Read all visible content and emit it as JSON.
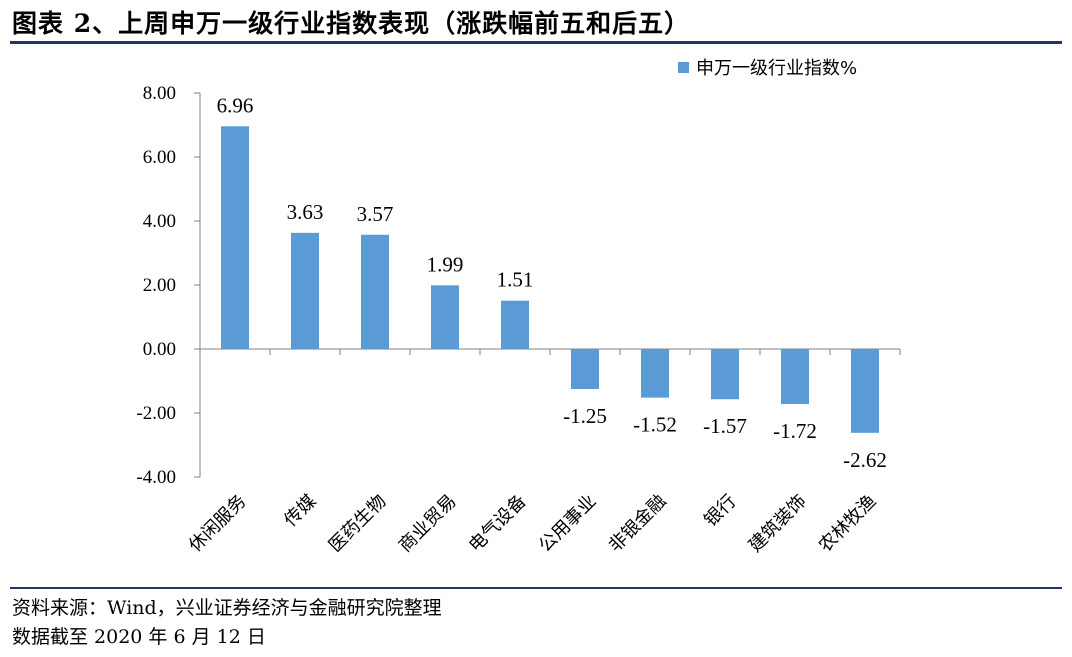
{
  "title": "图表 2、上周申万一级行业指数表现（涨跌幅前五和后五）",
  "footer": {
    "source": "资料来源：Wind，兴业证券经济与金融研究院整理",
    "date_note": "数据截至 2020 年 6 月 12 日"
  },
  "colors": {
    "bar": "#5b9bd5",
    "rule": "#1f3864",
    "axis": "#808080"
  },
  "chart_data": {
    "type": "bar",
    "categories": [
      "休闲服务",
      "传媒",
      "医药生物",
      "商业贸易",
      "电气设备",
      "公用事业",
      "非银金融",
      "银行",
      "建筑装饰",
      "农林牧渔"
    ],
    "series": [
      {
        "name": "申万一级行业指数%",
        "values": [
          6.96,
          3.63,
          3.57,
          1.99,
          1.51,
          -1.25,
          -1.52,
          -1.57,
          -1.72,
          -2.62
        ]
      }
    ],
    "data_labels": [
      "6.96",
      "3.63",
      "3.57",
      "1.99",
      "1.51",
      "-1.25",
      "-1.52",
      "-1.57",
      "-1.72",
      "-2.62"
    ],
    "y_ticks": [
      "8.00",
      "6.00",
      "4.00",
      "2.00",
      "0.00",
      "-2.00",
      "-4.00"
    ],
    "ylim": [
      -4,
      8
    ],
    "grid": false,
    "legend_position": "top-right"
  }
}
